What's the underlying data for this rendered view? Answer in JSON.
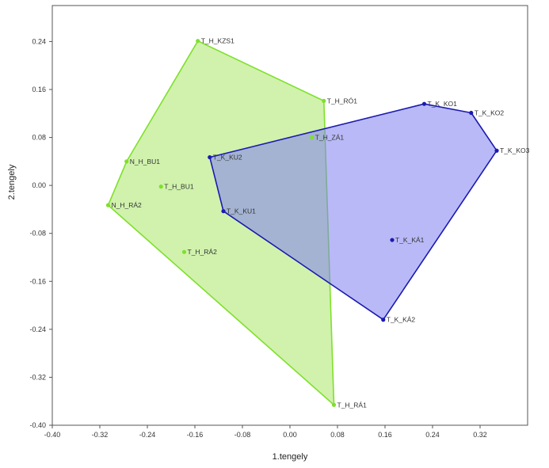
{
  "chart_data": {
    "type": "scatter",
    "title": "",
    "xlabel": "1.tengely",
    "ylabel": "2.tengely",
    "xlim": [
      -0.4,
      0.4
    ],
    "ylim": [
      -0.4,
      0.3
    ],
    "xticks": [
      -0.4,
      -0.32,
      -0.24,
      -0.16,
      -0.08,
      0.0,
      0.08,
      0.16,
      0.24,
      0.32
    ],
    "yticks": [
      -0.4,
      -0.32,
      -0.24,
      -0.16,
      -0.08,
      0.0,
      0.08,
      0.16,
      0.24
    ],
    "xtick_labels": [
      "-0.40",
      "-0.32",
      "-0.24",
      "-0.16",
      "-0.08",
      "0.00",
      "0.08",
      "0.16",
      "0.24",
      "0.32"
    ],
    "ytick_labels": [
      "-0.40",
      "-0.32",
      "-0.24",
      "-0.16",
      "-0.08",
      "0.00",
      "0.08",
      "0.16",
      "0.24"
    ],
    "grid": false,
    "series": [
      {
        "color": "#7fe02a",
        "fill": "#a9e86a",
        "hull_stroke": "#7fe02a",
        "points": [
          {
            "label": "T_H_KZS1",
            "x": -0.155,
            "y": 0.241
          },
          {
            "label": "T_H_RÓ1",
            "x": 0.057,
            "y": 0.141
          },
          {
            "label": "T_H_ZÁ1",
            "x": 0.037,
            "y": 0.08
          },
          {
            "label": "N_H_BU1",
            "x": -0.275,
            "y": 0.04
          },
          {
            "label": "T_H_BU1",
            "x": -0.217,
            "y": -0.002
          },
          {
            "label": "N_H_RÁ2",
            "x": -0.306,
            "y": -0.033
          },
          {
            "label": "T_H_RÁ2",
            "x": -0.178,
            "y": -0.111
          },
          {
            "label": "T_H_RÁ1",
            "x": 0.074,
            "y": -0.366
          }
        ],
        "hull": [
          "T_H_KZS1",
          "T_H_RÓ1",
          "T_H_RÁ1",
          "N_H_RÁ2",
          "N_H_BU1"
        ]
      },
      {
        "color": "#1a1ab0",
        "fill": "#7f7ff0",
        "hull_stroke": "#1a1ab0",
        "points": [
          {
            "label": "T_K_KO1",
            "x": 0.226,
            "y": 0.136
          },
          {
            "label": "T_K_KO2",
            "x": 0.305,
            "y": 0.121
          },
          {
            "label": "T_K_KO3",
            "x": 0.348,
            "y": 0.058
          },
          {
            "label": "T_K_KU2",
            "x": -0.135,
            "y": 0.047
          },
          {
            "label": "T_K_KU1",
            "x": -0.112,
            "y": -0.043
          },
          {
            "label": "T_K_KÁ1",
            "x": 0.172,
            "y": -0.091
          },
          {
            "label": "T_K_KÁ2",
            "x": 0.157,
            "y": -0.224
          }
        ],
        "hull": [
          "T_K_KU2",
          "T_K_KO1",
          "T_K_KO2",
          "T_K_KO3",
          "T_K_KÁ2",
          "T_K_KU1"
        ]
      }
    ]
  }
}
